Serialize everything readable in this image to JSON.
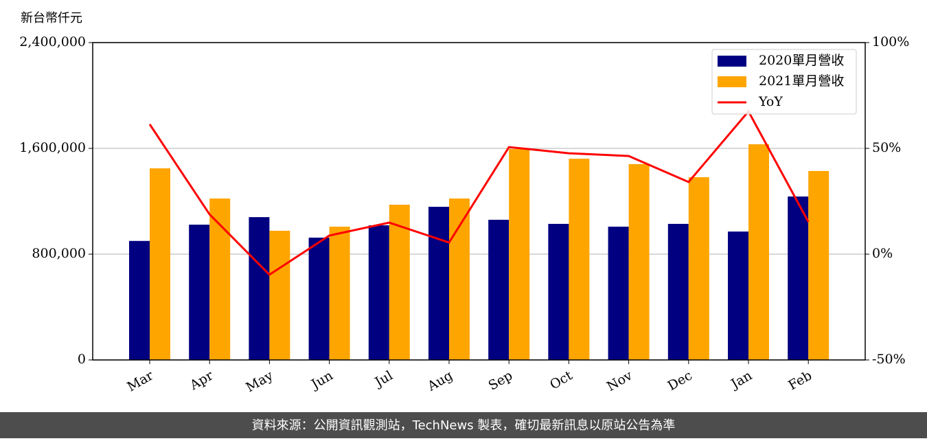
{
  "chart_data": {
    "type": "bar_line",
    "y_label": "新台幣仟元",
    "categories": [
      "Mar",
      "Apr",
      "May",
      "Jun",
      "Jul",
      "Aug",
      "Sep",
      "Oct",
      "Nov",
      "Dec",
      "Jan",
      "Feb"
    ],
    "series": [
      {
        "name": "2020單月營收",
        "color": "#000080",
        "values": [
          900000,
          1023000,
          1080000,
          925000,
          1018000,
          1158000,
          1060000,
          1029000,
          1008000,
          1029000,
          971000,
          1236000
        ]
      },
      {
        "name": "2021單月營收",
        "color": "#ffa500",
        "values": [
          1449000,
          1221000,
          977000,
          1008000,
          1174000,
          1221000,
          1595000,
          1522000,
          1481000,
          1382000,
          1631000,
          1429000
        ]
      },
      {
        "name": "YoY",
        "color": "#ff0000",
        "axis": "y2",
        "values": [
          61.4,
          18.8,
          -9.7,
          8.8,
          14.9,
          5.5,
          50.6,
          47.7,
          46.4,
          34.1,
          67.5,
          15.3
        ]
      }
    ],
    "ylim": [
      0,
      2400000
    ],
    "yticks": [
      0,
      {
        "value": 800000,
        "label": "800,000"
      },
      {
        "value": 1600000,
        "label": "1,600,000"
      },
      {
        "value": 2400000,
        "label": "2,400,000"
      }
    ],
    "y2lim": [
      -50,
      100
    ],
    "y2ticks": [
      {
        "value": -50,
        "label": "-50%"
      },
      {
        "value": 0,
        "label": "0%"
      },
      {
        "value": 50,
        "label": "50%"
      },
      {
        "value": 100,
        "label": "100%"
      }
    ],
    "grid": true,
    "legend": "upper right"
  },
  "footer": "資料來源：公開資訊觀測站，TechNews 製表，確切最新訊息以原站公告為準"
}
